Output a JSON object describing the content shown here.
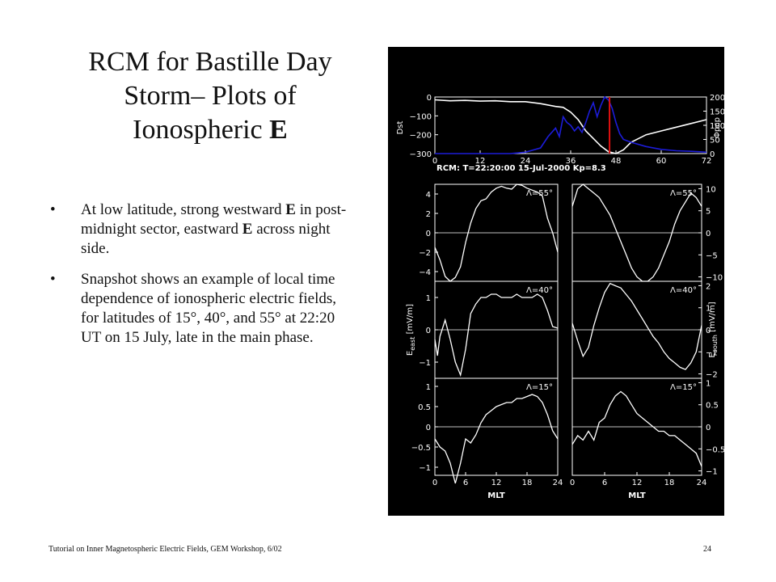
{
  "slide": {
    "title_line1": "RCM for Bastille Day",
    "title_line2": "Storm– Plots of",
    "title_line3a": "Ionospheric ",
    "title_line3b": "E",
    "bullets": [
      {
        "marker": "•",
        "parts": [
          "At low latitude, strong westward ",
          "E",
          " in post-midnight sector, eastward ",
          "E",
          " across night side."
        ]
      },
      {
        "marker": "•",
        "parts": [
          "Snapshot shows an example of local time dependence of ionospheric electric fields, for latitudes of 15°, 40°, and 55° at 22:20 UT on 15 July, late in the main phase."
        ]
      }
    ],
    "footer_left": "Tutorial on Inner Magnetospheric Electric Fields, GEM Workshop, 6/02",
    "footer_right": "24"
  },
  "figure": {
    "background": "#000000",
    "line_color": "#ffffff",
    "blue_color": "#1c1cd8",
    "red_color": "#e01010",
    "info_label": "RCM: T=22:20:00   15-Jul-2000   Kp=8.3",
    "left_axis_label": "E",
    "left_axis_sub": "east",
    "left_axis_unit": "[mV/m]",
    "right_axis_label": "E",
    "right_axis_sub": "south",
    "right_axis_unit": "[mV/m]"
  },
  "chart_data": [
    {
      "type": "line",
      "title": "",
      "xlabel": "",
      "xlim": [
        0,
        72
      ],
      "xticks": [
        "0",
        "12",
        "24",
        "36",
        "48",
        "60",
        "72"
      ],
      "ylabel_left": "Dst",
      "ylabel_right": "Φpcp",
      "ylim_left": [
        -300,
        0
      ],
      "yticks_left": [
        "0",
        "−100",
        "−200",
        "−300"
      ],
      "ylim_right": [
        0,
        200
      ],
      "yticks_right": [
        "200",
        "150",
        "100",
        "50",
        "0"
      ],
      "marker_line_x": 46.3,
      "series": [
        {
          "axis": "left",
          "color": "#ffffff",
          "x": [
            0,
            4,
            8,
            12,
            16,
            20,
            24,
            28,
            32,
            34,
            36,
            38,
            40,
            42,
            44,
            46,
            48,
            50,
            52,
            56,
            60,
            64,
            68,
            72
          ],
          "y": [
            -15,
            -20,
            -18,
            -22,
            -20,
            -25,
            -25,
            -35,
            -50,
            -55,
            -80,
            -120,
            -180,
            -220,
            -260,
            -290,
            -300,
            -280,
            -240,
            -200,
            -180,
            -160,
            -140,
            -120
          ]
        },
        {
          "axis": "right",
          "color": "#1c1cd8",
          "x": [
            0,
            20,
            24,
            28,
            30,
            32,
            33,
            34,
            35,
            36,
            37,
            38,
            39,
            40,
            41,
            42,
            43,
            44,
            45,
            46,
            47,
            48,
            49,
            50,
            52,
            56,
            60,
            64,
            68,
            72
          ],
          "y": [
            0,
            0,
            5,
            20,
            60,
            90,
            60,
            130,
            110,
            100,
            80,
            95,
            75,
            110,
            150,
            180,
            130,
            170,
            200,
            190,
            160,
            110,
            70,
            50,
            40,
            25,
            15,
            10,
            8,
            5
          ]
        }
      ]
    },
    {
      "type": "line",
      "title": "",
      "xlabel": "MLT",
      "ylabel": "E",
      "xlim": [
        0,
        24
      ],
      "xticks": [
        "0",
        "6",
        "12",
        "18",
        "24"
      ],
      "panels": [
        {
          "label": "Λ=55°",
          "ylim": [
            -5,
            5
          ],
          "yticks": [
            "4",
            "2",
            "0",
            "−2",
            "−4"
          ],
          "x": [
            0,
            1,
            2,
            3,
            4,
            5,
            6,
            7,
            8,
            9,
            10,
            11,
            12,
            13,
            14,
            15,
            16,
            17,
            18,
            19,
            20,
            21,
            22,
            23,
            24
          ],
          "y": [
            -1.5,
            -2.8,
            -4.5,
            -5,
            -4.6,
            -3.5,
            -1,
            1,
            2.5,
            3.3,
            3.5,
            4.2,
            4.6,
            4.8,
            4.6,
            4.5,
            5,
            4.9,
            4.6,
            4.4,
            4.2,
            3.8,
            1.5,
            0,
            -2
          ]
        },
        {
          "label": "Λ=40°",
          "ylim": [
            -1.5,
            1.5
          ],
          "yticks": [
            "1",
            "0",
            "−1"
          ],
          "x": [
            0,
            0.5,
            1,
            2,
            3,
            4,
            5,
            6,
            7,
            8,
            9,
            10,
            11,
            12,
            13,
            14,
            15,
            16,
            17,
            18,
            19,
            20,
            21,
            22,
            23,
            24
          ],
          "y": [
            -0.3,
            -0.8,
            -0.2,
            0.3,
            -0.3,
            -1.0,
            -1.4,
            -0.6,
            0.5,
            0.8,
            1.0,
            1.0,
            1.1,
            1.1,
            1.0,
            1.0,
            1.0,
            1.1,
            1.0,
            1.0,
            1.0,
            1.1,
            1.0,
            0.6,
            0.1,
            0.05
          ]
        },
        {
          "label": "Λ=15°",
          "ylim": [
            -1.2,
            1.2
          ],
          "yticks": [
            "1",
            "0.5",
            "0",
            "−0.5",
            "−1"
          ],
          "x": [
            0,
            1,
            2,
            3,
            4,
            5,
            6,
            7,
            8,
            9,
            10,
            11,
            12,
            13,
            14,
            15,
            16,
            17,
            18,
            19,
            20,
            21,
            22,
            23,
            24
          ],
          "y": [
            -0.3,
            -0.5,
            -0.6,
            -0.9,
            -1.4,
            -0.9,
            -0.3,
            -0.4,
            -0.2,
            0.1,
            0.3,
            0.4,
            0.5,
            0.55,
            0.6,
            0.6,
            0.7,
            0.7,
            0.75,
            0.8,
            0.75,
            0.6,
            0.3,
            -0.1,
            -0.3
          ]
        }
      ]
    },
    {
      "type": "line",
      "title": "",
      "xlabel": "MLT",
      "ylabel": "E",
      "xlim": [
        0,
        24
      ],
      "xticks": [
        "0",
        "6",
        "12",
        "18",
        "24"
      ],
      "panels": [
        {
          "label": "Λ=55°",
          "ylim": [
            -11,
            11
          ],
          "yticks": [
            "10",
            "5",
            "0",
            "−5",
            "−10"
          ],
          "x": [
            0,
            1,
            2,
            3,
            4,
            5,
            6,
            7,
            8,
            9,
            10,
            11,
            12,
            13,
            14,
            15,
            16,
            17,
            18,
            19,
            20,
            21,
            22,
            23,
            24
          ],
          "y": [
            6,
            10,
            11,
            10,
            9,
            8,
            6,
            4,
            1,
            -2,
            -5,
            -8,
            -10,
            -11,
            -11,
            -10,
            -8,
            -5,
            -2,
            2,
            5,
            7,
            9,
            8,
            6
          ]
        },
        {
          "label": "Λ=40°",
          "ylim": [
            -2.2,
            2.2
          ],
          "yticks": [
            "2",
            "1",
            "0",
            "−1",
            "−2"
          ],
          "x": [
            0,
            1,
            2,
            3,
            4,
            5,
            6,
            7,
            8,
            9,
            10,
            11,
            12,
            13,
            14,
            15,
            16,
            17,
            18,
            19,
            20,
            21,
            22,
            23,
            24
          ],
          "y": [
            0.3,
            -0.5,
            -1.2,
            -0.8,
            0.2,
            1.0,
            1.7,
            2.1,
            2.0,
            1.9,
            1.6,
            1.3,
            0.9,
            0.5,
            0.1,
            -0.3,
            -0.6,
            -1.0,
            -1.3,
            -1.5,
            -1.7,
            -1.8,
            -1.5,
            -1.0,
            0.2
          ]
        },
        {
          "label": "Λ=15°",
          "ylim": [
            -1.1,
            1.1
          ],
          "yticks": [
            "1",
            "0.5",
            "0",
            "−0.5",
            "−1"
          ],
          "x": [
            0,
            1,
            2,
            3,
            4,
            5,
            6,
            7,
            8,
            9,
            10,
            11,
            12,
            13,
            14,
            15,
            16,
            17,
            18,
            19,
            20,
            21,
            22,
            23,
            24
          ],
          "y": [
            -0.4,
            -0.2,
            -0.3,
            -0.1,
            -0.3,
            0.1,
            0.2,
            0.5,
            0.7,
            0.8,
            0.7,
            0.5,
            0.3,
            0.2,
            0.1,
            0.0,
            -0.1,
            -0.1,
            -0.2,
            -0.2,
            -0.3,
            -0.4,
            -0.5,
            -0.6,
            -0.9
          ]
        }
      ]
    }
  ]
}
